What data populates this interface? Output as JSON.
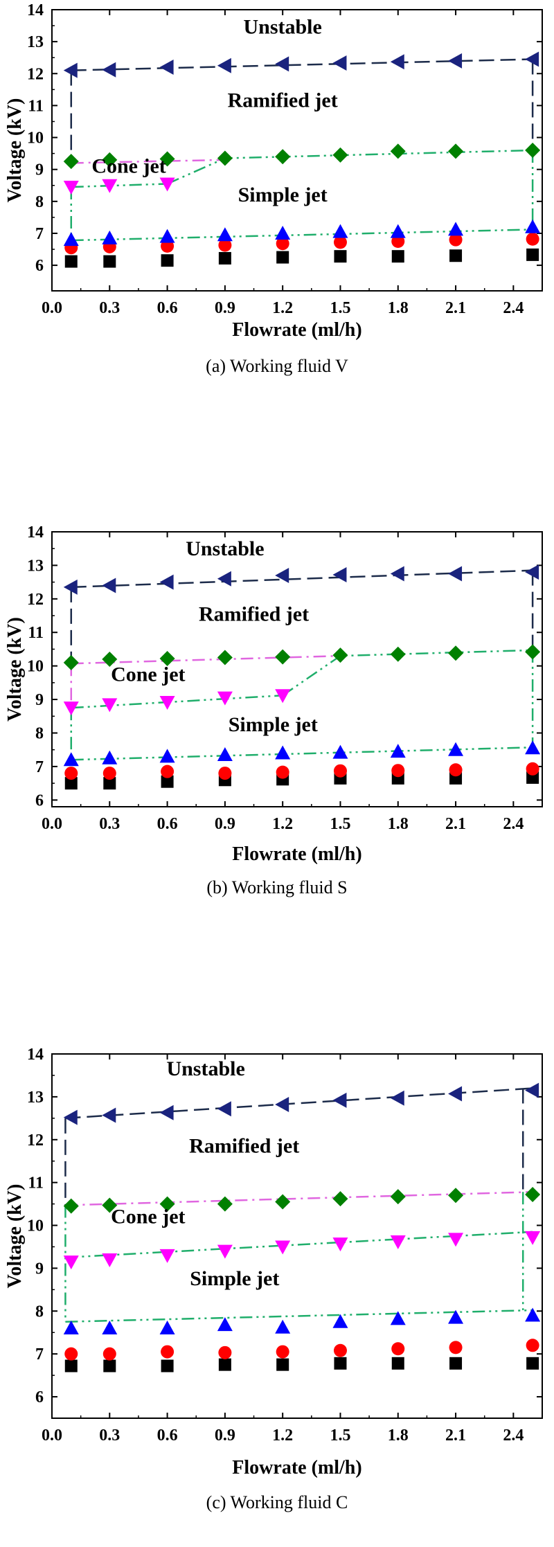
{
  "chart_data": [
    {
      "type": "scatter",
      "caption": "(a) Working fluid V",
      "xlabel": "Flowrate (ml/h)",
      "ylabel": "Voltage (kV)",
      "xlim": [
        0.0,
        2.55
      ],
      "ylim": [
        5.2,
        14
      ],
      "xticks": [
        0.0,
        0.3,
        0.6,
        0.9,
        1.2,
        1.5,
        1.8,
        2.1,
        2.4
      ],
      "xtick_labels": [
        "0.0",
        "0.3",
        "0.6",
        "0.9",
        "1.2",
        "1.5",
        "1.8",
        "2.1",
        "2.4"
      ],
      "yticks": [
        6,
        7,
        8,
        9,
        10,
        11,
        12,
        13,
        14
      ],
      "ytick_labels": [
        "6",
        "7",
        "8",
        "9",
        "10",
        "11",
        "12",
        "13",
        "14"
      ],
      "x": [
        0.1,
        0.3,
        0.6,
        0.9,
        1.2,
        1.5,
        1.8,
        2.1,
        2.5
      ],
      "series": [
        {
          "name": "black-square",
          "marker": "square",
          "color": "#000000",
          "values": [
            6.12,
            6.12,
            6.15,
            6.22,
            6.25,
            6.28,
            6.28,
            6.3,
            6.33
          ]
        },
        {
          "name": "red-circle",
          "marker": "circle",
          "color": "#ff0000",
          "values": [
            6.55,
            6.58,
            6.6,
            6.63,
            6.68,
            6.72,
            6.75,
            6.8,
            6.82
          ]
        },
        {
          "name": "blue-triangle-up",
          "marker": "triangle-up",
          "color": "#0000ff",
          "values": [
            6.8,
            6.85,
            6.9,
            6.95,
            7.0,
            7.05,
            7.05,
            7.12,
            7.2
          ]
        },
        {
          "name": "magenta-triangle-down",
          "marker": "triangle-down",
          "color": "#ff00ff",
          "x": [
            0.1,
            0.3,
            0.6
          ],
          "values": [
            8.45,
            8.5,
            8.55
          ]
        },
        {
          "name": "green-diamond",
          "marker": "diamond",
          "color": "#008000",
          "values": [
            9.25,
            9.3,
            9.33,
            9.35,
            9.4,
            9.45,
            9.57,
            9.57,
            9.6
          ]
        },
        {
          "name": "navy-triangle-left",
          "marker": "triangle-left",
          "color": "#1a237e",
          "values": [
            12.1,
            12.12,
            12.2,
            12.25,
            12.3,
            12.33,
            12.37,
            12.4,
            12.45
          ]
        }
      ],
      "boundaries": [
        {
          "name": "unstable-boundary",
          "style": "dash",
          "color": "#1c2b4a",
          "points": [
            [
              0.1,
              12.1
            ],
            [
              2.5,
              12.45
            ]
          ]
        },
        {
          "name": "ramified-boundary",
          "style": "dashdotdot",
          "color": "#1fae6b",
          "points": [
            [
              0.6,
              8.55
            ],
            [
              0.9,
              9.35
            ],
            [
              2.5,
              9.6
            ]
          ]
        },
        {
          "name": "cone-boundary-upper",
          "style": "dashdot",
          "color": "#e066e0",
          "points": [
            [
              0.1,
              9.2
            ],
            [
              0.9,
              9.3
            ]
          ]
        },
        {
          "name": "cone-boundary-lower",
          "style": "dashdotdot",
          "color": "#1fae6b",
          "points": [
            [
              0.1,
              8.45
            ],
            [
              0.6,
              8.55
            ]
          ]
        },
        {
          "name": "simple-boundary",
          "style": "dashdotdot",
          "color": "#1fae6b",
          "points": [
            [
              0.1,
              6.78
            ],
            [
              2.5,
              7.12
            ]
          ]
        },
        {
          "name": "left-dash",
          "style": "dash",
          "color": "#1c2b4a",
          "points": [
            [
              0.1,
              12.1
            ],
            [
              0.1,
              9.2
            ]
          ]
        },
        {
          "name": "left-dashdot",
          "style": "dashdotdot",
          "color": "#1fae6b",
          "points": [
            [
              0.1,
              8.45
            ],
            [
              0.1,
              6.78
            ]
          ]
        },
        {
          "name": "right-dash",
          "style": "dash",
          "color": "#1c2b4a",
          "points": [
            [
              2.5,
              12.45
            ],
            [
              2.5,
              9.6
            ]
          ]
        },
        {
          "name": "right-dashdot",
          "style": "dashdotdot",
          "color": "#1fae6b",
          "points": [
            [
              2.5,
              9.6
            ],
            [
              2.5,
              7.12
            ]
          ]
        }
      ],
      "annotations": [
        {
          "text": "Unstable",
          "x": 1.2,
          "y": 13.25
        },
        {
          "text": "Ramified jet",
          "x": 1.2,
          "y": 10.95
        },
        {
          "text": "Cone jet",
          "x": 0.4,
          "y": 8.9
        },
        {
          "text": "Simple jet",
          "x": 1.2,
          "y": 8.0
        }
      ]
    },
    {
      "type": "scatter",
      "caption": "(b) Working fluid S",
      "xlabel": "Flowrate (ml/h)",
      "ylabel": "Voltage (kV)",
      "xlim": [
        0.0,
        2.55
      ],
      "ylim": [
        5.8,
        14
      ],
      "xticks": [
        0.0,
        0.3,
        0.6,
        0.9,
        1.2,
        1.5,
        1.8,
        2.1,
        2.4
      ],
      "xtick_labels": [
        "0.0",
        "0.3",
        "0.6",
        "0.9",
        "1.2",
        "1.5",
        "1.8",
        "2.1",
        "2.4"
      ],
      "yticks": [
        6,
        7,
        8,
        9,
        10,
        11,
        12,
        13,
        14
      ],
      "ytick_labels": [
        "6",
        "7",
        "8",
        "9",
        "10",
        "11",
        "12",
        "13",
        "14"
      ],
      "x": [
        0.1,
        0.3,
        0.6,
        0.9,
        1.2,
        1.5,
        1.8,
        2.1,
        2.5
      ],
      "series": [
        {
          "name": "black-square",
          "marker": "square",
          "color": "#000000",
          "values": [
            6.5,
            6.5,
            6.55,
            6.6,
            6.62,
            6.65,
            6.65,
            6.65,
            6.67
          ]
        },
        {
          "name": "red-circle",
          "marker": "circle",
          "color": "#ff0000",
          "values": [
            6.8,
            6.8,
            6.85,
            6.8,
            6.83,
            6.87,
            6.88,
            6.9,
            6.93
          ]
        },
        {
          "name": "blue-triangle-up",
          "marker": "triangle-up",
          "color": "#0000ff",
          "values": [
            7.2,
            7.25,
            7.3,
            7.35,
            7.4,
            7.42,
            7.45,
            7.5,
            7.55
          ]
        },
        {
          "name": "magenta-triangle-down",
          "marker": "triangle-down",
          "color": "#ff00ff",
          "x": [
            0.1,
            0.3,
            0.6,
            0.9,
            1.2
          ],
          "values": [
            8.75,
            8.85,
            8.92,
            9.05,
            9.12
          ]
        },
        {
          "name": "green-diamond",
          "marker": "diamond",
          "color": "#008000",
          "values": [
            10.1,
            10.2,
            10.22,
            10.25,
            10.27,
            10.32,
            10.35,
            10.38,
            10.42
          ]
        },
        {
          "name": "navy-triangle-left",
          "marker": "triangle-left",
          "color": "#1a237e",
          "values": [
            12.35,
            12.4,
            12.5,
            12.6,
            12.7,
            12.72,
            12.75,
            12.75,
            12.8
          ]
        }
      ],
      "boundaries": [
        {
          "name": "unstable-boundary",
          "style": "dash",
          "color": "#1c2b4a",
          "points": [
            [
              0.1,
              12.35
            ],
            [
              2.5,
              12.85
            ]
          ]
        },
        {
          "name": "ramified-boundary",
          "style": "dashdotdot",
          "color": "#1fae6b",
          "points": [
            [
              1.2,
              9.12
            ],
            [
              1.5,
              10.3
            ],
            [
              2.5,
              10.47
            ]
          ]
        },
        {
          "name": "cone-boundary-upper",
          "style": "dashdot",
          "color": "#e066e0",
          "points": [
            [
              0.1,
              10.07
            ],
            [
              1.5,
              10.3
            ]
          ]
        },
        {
          "name": "cone-boundary-lower",
          "style": "dashdotdot",
          "color": "#1fae6b",
          "points": [
            [
              0.1,
              8.75
            ],
            [
              1.2,
              9.12
            ]
          ]
        },
        {
          "name": "simple-boundary",
          "style": "dashdotdot",
          "color": "#1fae6b",
          "points": [
            [
              0.1,
              7.2
            ],
            [
              2.5,
              7.57
            ]
          ]
        },
        {
          "name": "left-dash",
          "style": "dash",
          "color": "#1c2b4a",
          "points": [
            [
              0.1,
              12.35
            ],
            [
              0.1,
              10.07
            ]
          ]
        },
        {
          "name": "left-dashdot",
          "style": "dashdot",
          "color": "#e066e0",
          "points": [
            [
              0.1,
              10.07
            ],
            [
              0.1,
              8.75
            ]
          ]
        },
        {
          "name": "left-dashdot-lower",
          "style": "dashdotdot",
          "color": "#1fae6b",
          "points": [
            [
              0.1,
              8.75
            ],
            [
              0.1,
              7.2
            ]
          ]
        },
        {
          "name": "right-dash",
          "style": "dash",
          "color": "#1c2b4a",
          "points": [
            [
              2.5,
              12.85
            ],
            [
              2.5,
              10.47
            ]
          ]
        },
        {
          "name": "right-dashdot",
          "style": "dashdotdot",
          "color": "#1fae6b",
          "points": [
            [
              2.5,
              10.47
            ],
            [
              2.5,
              7.57
            ]
          ]
        }
      ],
      "annotations": [
        {
          "text": "Unstable",
          "x": 0.9,
          "y": 13.3
        },
        {
          "text": "Ramified jet",
          "x": 1.05,
          "y": 11.35
        },
        {
          "text": "Cone jet",
          "x": 0.5,
          "y": 9.55
        },
        {
          "text": "Simple jet",
          "x": 1.15,
          "y": 8.05
        }
      ]
    },
    {
      "type": "scatter",
      "caption": "(c) Working fluid C",
      "xlabel": "Flowrate (ml/h)",
      "ylabel": "Voltage (kV)",
      "xlim": [
        0.0,
        2.55
      ],
      "ylim": [
        5.5,
        14
      ],
      "xticks": [
        0.0,
        0.3,
        0.6,
        0.9,
        1.2,
        1.5,
        1.8,
        2.1,
        2.4
      ],
      "xtick_labels": [
        "0.0",
        "0.3",
        "0.6",
        "0.9",
        "1.2",
        "1.5",
        "1.8",
        "2.1",
        "2.4"
      ],
      "yticks": [
        6,
        7,
        8,
        9,
        10,
        11,
        12,
        13,
        14
      ],
      "ytick_labels": [
        "6",
        "7",
        "8",
        "9",
        "10",
        "11",
        "12",
        "13",
        "14"
      ],
      "x": [
        0.1,
        0.3,
        0.6,
        0.9,
        1.2,
        1.5,
        1.8,
        2.1,
        2.5
      ],
      "series": [
        {
          "name": "black-square",
          "marker": "square",
          "color": "#000000",
          "values": [
            6.72,
            6.72,
            6.72,
            6.75,
            6.75,
            6.78,
            6.78,
            6.78,
            6.78
          ]
        },
        {
          "name": "red-circle",
          "marker": "circle",
          "color": "#ff0000",
          "values": [
            7.0,
            7.0,
            7.05,
            7.03,
            7.05,
            7.08,
            7.12,
            7.15,
            7.2
          ]
        },
        {
          "name": "blue-triangle-up",
          "marker": "triangle-up",
          "color": "#0000ff",
          "values": [
            7.6,
            7.6,
            7.6,
            7.68,
            7.62,
            7.75,
            7.82,
            7.85,
            7.9
          ]
        },
        {
          "name": "magenta-triangle-down",
          "marker": "triangle-down",
          "color": "#ff00ff",
          "values": [
            9.15,
            9.2,
            9.3,
            9.4,
            9.5,
            9.57,
            9.62,
            9.68,
            9.72
          ]
        },
        {
          "name": "green-diamond",
          "marker": "diamond",
          "color": "#008000",
          "values": [
            10.45,
            10.47,
            10.5,
            10.5,
            10.55,
            10.62,
            10.67,
            10.7,
            10.72
          ]
        },
        {
          "name": "navy-triangle-left",
          "marker": "triangle-left",
          "color": "#1a237e",
          "values": [
            12.52,
            12.57,
            12.63,
            12.72,
            12.82,
            12.92,
            12.97,
            13.07,
            13.15
          ]
        }
      ],
      "boundaries": [
        {
          "name": "unstable-boundary",
          "style": "dash",
          "color": "#1c2b4a",
          "points": [
            [
              0.07,
              12.5
            ],
            [
              2.5,
              13.2
            ]
          ]
        },
        {
          "name": "ramified-boundary",
          "style": "dashdot",
          "color": "#e066e0",
          "points": [
            [
              0.07,
              10.47
            ],
            [
              2.5,
              10.78
            ]
          ]
        },
        {
          "name": "cone-boundary",
          "style": "dashdotdot",
          "color": "#1fae6b",
          "points": [
            [
              0.07,
              9.25
            ],
            [
              2.5,
              9.85
            ]
          ]
        },
        {
          "name": "simple-boundary",
          "style": "dashdotdot",
          "color": "#1fae6b",
          "points": [
            [
              0.07,
              7.75
            ],
            [
              2.5,
              8.02
            ]
          ]
        },
        {
          "name": "left-dash",
          "style": "dash",
          "color": "#1c2b4a",
          "points": [
            [
              0.07,
              12.5
            ],
            [
              0.07,
              10.47
            ]
          ]
        },
        {
          "name": "left-dashdot",
          "style": "dashdotdot",
          "color": "#1fae6b",
          "points": [
            [
              0.07,
              10.47
            ],
            [
              0.07,
              7.75
            ]
          ]
        },
        {
          "name": "right-dash",
          "style": "dash",
          "color": "#1c2b4a",
          "points": [
            [
              2.45,
              13.2
            ],
            [
              2.45,
              10.78
            ]
          ]
        },
        {
          "name": "right-dashdot",
          "style": "dashdotdot",
          "color": "#1fae6b",
          "points": [
            [
              2.45,
              10.78
            ],
            [
              2.45,
              8.02
            ]
          ]
        }
      ],
      "annotations": [
        {
          "text": "Unstable",
          "x": 0.8,
          "y": 13.5
        },
        {
          "text": "Ramified jet",
          "x": 1.0,
          "y": 11.7
        },
        {
          "text": "Cone jet",
          "x": 0.5,
          "y": 10.05
        },
        {
          "text": "Simple jet",
          "x": 0.95,
          "y": 8.6
        }
      ]
    }
  ]
}
